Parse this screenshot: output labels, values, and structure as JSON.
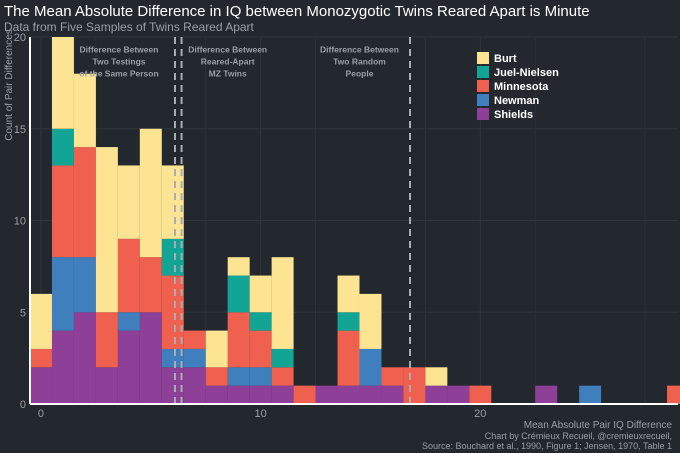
{
  "chart_data": {
    "type": "bar",
    "stacked": true,
    "title": "The Mean Absolute Difference in IQ between Monozygotic Twins Reared Apart is Minute",
    "subtitle": "Data from Five Samples of Twins Reared Apart",
    "xlabel": "Mean Absolute Pair IQ Difference",
    "ylabel": "Count of Pair Differences",
    "xlim": [
      -0.5,
      29
    ],
    "ylim": [
      0,
      20
    ],
    "x_ticks": [
      0,
      10,
      20
    ],
    "y_ticks": [
      0,
      5,
      10,
      15,
      20
    ],
    "bin_width": 1,
    "bins": [
      -0.5,
      0.5,
      1.5,
      2.5,
      3.5,
      4.5,
      5.5,
      6.5,
      7.5,
      8.5,
      9.5,
      10.5,
      11.5,
      12.5,
      13.5,
      14.5,
      15.5,
      16.5,
      17.5,
      18.5,
      19.5,
      20.5,
      21.5,
      22.5,
      23.5,
      24.5,
      25.5,
      26.5,
      27.5,
      28.5
    ],
    "series": [
      {
        "name": "Shields",
        "color": "#8e3f98",
        "values": [
          2,
          4,
          5,
          2,
          4,
          5,
          2,
          2,
          1,
          1,
          1,
          1,
          0,
          1,
          1,
          1,
          1,
          0,
          1,
          1,
          0,
          0,
          0,
          1,
          0,
          0,
          0,
          0,
          0,
          0
        ]
      },
      {
        "name": "Newman",
        "color": "#3f7fbd",
        "values": [
          0,
          4,
          3,
          0,
          1,
          0,
          1,
          1,
          0,
          1,
          1,
          0,
          0,
          0,
          0,
          2,
          0,
          0,
          0,
          0,
          0,
          0,
          0,
          0,
          0,
          1,
          0,
          0,
          0,
          0
        ]
      },
      {
        "name": "Minnesota",
        "color": "#f0604f",
        "values": [
          1,
          5,
          6,
          3,
          4,
          3,
          4,
          1,
          1,
          3,
          2,
          1,
          1,
          0,
          3,
          0,
          1,
          2,
          0,
          0,
          1,
          0,
          0,
          0,
          0,
          0,
          0,
          0,
          0,
          1
        ]
      },
      {
        "name": "Juel-Nielsen",
        "color": "#12a596",
        "values": [
          0,
          2,
          0,
          0,
          0,
          0,
          2,
          0,
          0,
          2,
          1,
          1,
          0,
          0,
          1,
          0,
          0,
          0,
          0,
          0,
          0,
          0,
          0,
          0,
          0,
          0,
          0,
          0,
          0,
          0
        ]
      },
      {
        "name": "Burt",
        "color": "#fde492",
        "values": [
          3,
          5,
          4,
          9,
          4,
          7,
          4,
          0,
          2,
          1,
          2,
          5,
          0,
          0,
          2,
          3,
          0,
          0,
          1,
          0,
          0,
          0,
          0,
          0,
          0,
          0,
          0,
          0,
          0,
          0
        ]
      }
    ],
    "legend_order": [
      "Burt",
      "Juel-Nielsen",
      "Minnesota",
      "Newman",
      "Shields"
    ],
    "legend_position": "top-right",
    "reference_lines": [
      {
        "x": 6.1,
        "label": "Difference Between Two Testings of the Same Person"
      },
      {
        "x": 6.4,
        "label": ""
      },
      {
        "x": 16.8,
        "label": ""
      }
    ],
    "annotations": [
      {
        "lines": [
          "Difference Between",
          "Two Testings",
          "of the Same Person"
        ]
      },
      {
        "lines": [
          "Difference Between",
          "Reared-Apart",
          "MZ Twins"
        ]
      },
      {
        "lines": [
          "Difference Between",
          "Two Random",
          "People"
        ]
      }
    ],
    "caption": [
      "Mean Absolute Pair IQ Difference",
      "Chart by Crémieux Recueil, @cremieuxrecueil,",
      "Source: Bouchard et al., 1990, Figure 1; Jensen, 1970, Table 1"
    ],
    "grid": true
  }
}
